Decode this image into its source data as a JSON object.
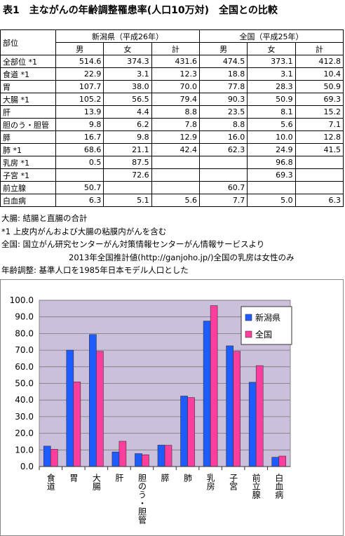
{
  "title": "表1　主ながんの年齢調整罹患率(人口10万対)　全国との比較",
  "table": {
    "corner": "部位",
    "groups": [
      "新潟県（平成26年）",
      "全国（平成25年）"
    ],
    "subheads": [
      "男",
      "女",
      "計",
      "男",
      "女",
      "計"
    ],
    "rows": [
      {
        "label": "全部位 *1",
        "values": [
          "514.6",
          "374.3",
          "431.6",
          "474.5",
          "373.1",
          "412.8"
        ]
      },
      {
        "label": "食道 *1",
        "values": [
          "22.9",
          "3.1",
          "12.3",
          "18.8",
          "3.1",
          "10.4"
        ]
      },
      {
        "label": "胃",
        "values": [
          "107.7",
          "38.0",
          "70.0",
          "77.8",
          "28.3",
          "50.9"
        ]
      },
      {
        "label": "大腸 *1",
        "values": [
          "105.2",
          "56.5",
          "79.4",
          "90.3",
          "50.9",
          "69.3"
        ]
      },
      {
        "label": "肝",
        "values": [
          "13.9",
          "4.4",
          "8.8",
          "23.5",
          "8.1",
          "15.2"
        ]
      },
      {
        "label": "胆のう・胆管",
        "values": [
          "9.8",
          "6.2",
          "7.8",
          "8.8",
          "5.6",
          "7.1"
        ]
      },
      {
        "label": "膵",
        "values": [
          "16.7",
          "9.8",
          "12.9",
          "16.0",
          "10.0",
          "12.8"
        ]
      },
      {
        "label": "肺 *1",
        "values": [
          "68.6",
          "21.1",
          "42.4",
          "62.3",
          "24.9",
          "41.5"
        ]
      },
      {
        "label": "乳房 *1",
        "values": [
          "0.5",
          "87.5",
          null,
          null,
          "96.8",
          null
        ]
      },
      {
        "label": "子宮 *1",
        "values": [
          null,
          "72.6",
          null,
          null,
          "69.3",
          null
        ]
      },
      {
        "label": "前立腺",
        "values": [
          "50.7",
          null,
          null,
          "60.7",
          null,
          null
        ]
      },
      {
        "label": "白血病",
        "values": [
          "6.3",
          "5.1",
          "5.6",
          "7.7",
          "5.0",
          "6.3"
        ]
      }
    ]
  },
  "notes": [
    "大腸: 結腸と直腸の合計",
    "*1 上皮内がんおよび大腸の粘膜内がんを含む",
    "全国: 国立がん研究センターがん対策情報センターがん情報サービスより",
    "2013年全国推計値(http://ganjoho.jp/)全国の乳房は女性のみ",
    "年齢調整: 基準人口を1985年日本モデル人口とした"
  ],
  "chart_data": {
    "type": "bar",
    "categories": [
      "食道",
      "胃",
      "大腸",
      "肝",
      "胆のう・胆管",
      "膵",
      "肺",
      "乳房",
      "子宮",
      "前立腺",
      "白血病"
    ],
    "series": [
      {
        "name": "新潟県",
        "color": "#1f5cff",
        "values": [
          12.3,
          70.0,
          79.4,
          8.8,
          7.8,
          12.9,
          42.4,
          87.5,
          72.6,
          50.7,
          5.6
        ]
      },
      {
        "name": "全国",
        "color": "#ff3d9e",
        "values": [
          10.4,
          50.9,
          69.3,
          15.2,
          7.1,
          12.8,
          41.5,
          96.8,
          69.3,
          60.7,
          6.3
        ]
      }
    ],
    "ylim": [
      0,
      100
    ],
    "yticks": [
      {
        "value": 0,
        "label": "0.0"
      },
      {
        "value": 10,
        "label": "10.0"
      },
      {
        "value": 20,
        "label": "20.0"
      },
      {
        "value": 30,
        "label": "30.0"
      },
      {
        "value": 40,
        "label": "40.0"
      },
      {
        "value": 50,
        "label": "50.0"
      },
      {
        "value": 60,
        "label": "60.0"
      },
      {
        "value": 70,
        "label": "70.0"
      },
      {
        "value": 80,
        "label": "80.0"
      },
      {
        "value": 90,
        "label": "90.0"
      },
      {
        "value": 100,
        "label": "100.0"
      }
    ],
    "grid": true,
    "legend": "top-right"
  }
}
